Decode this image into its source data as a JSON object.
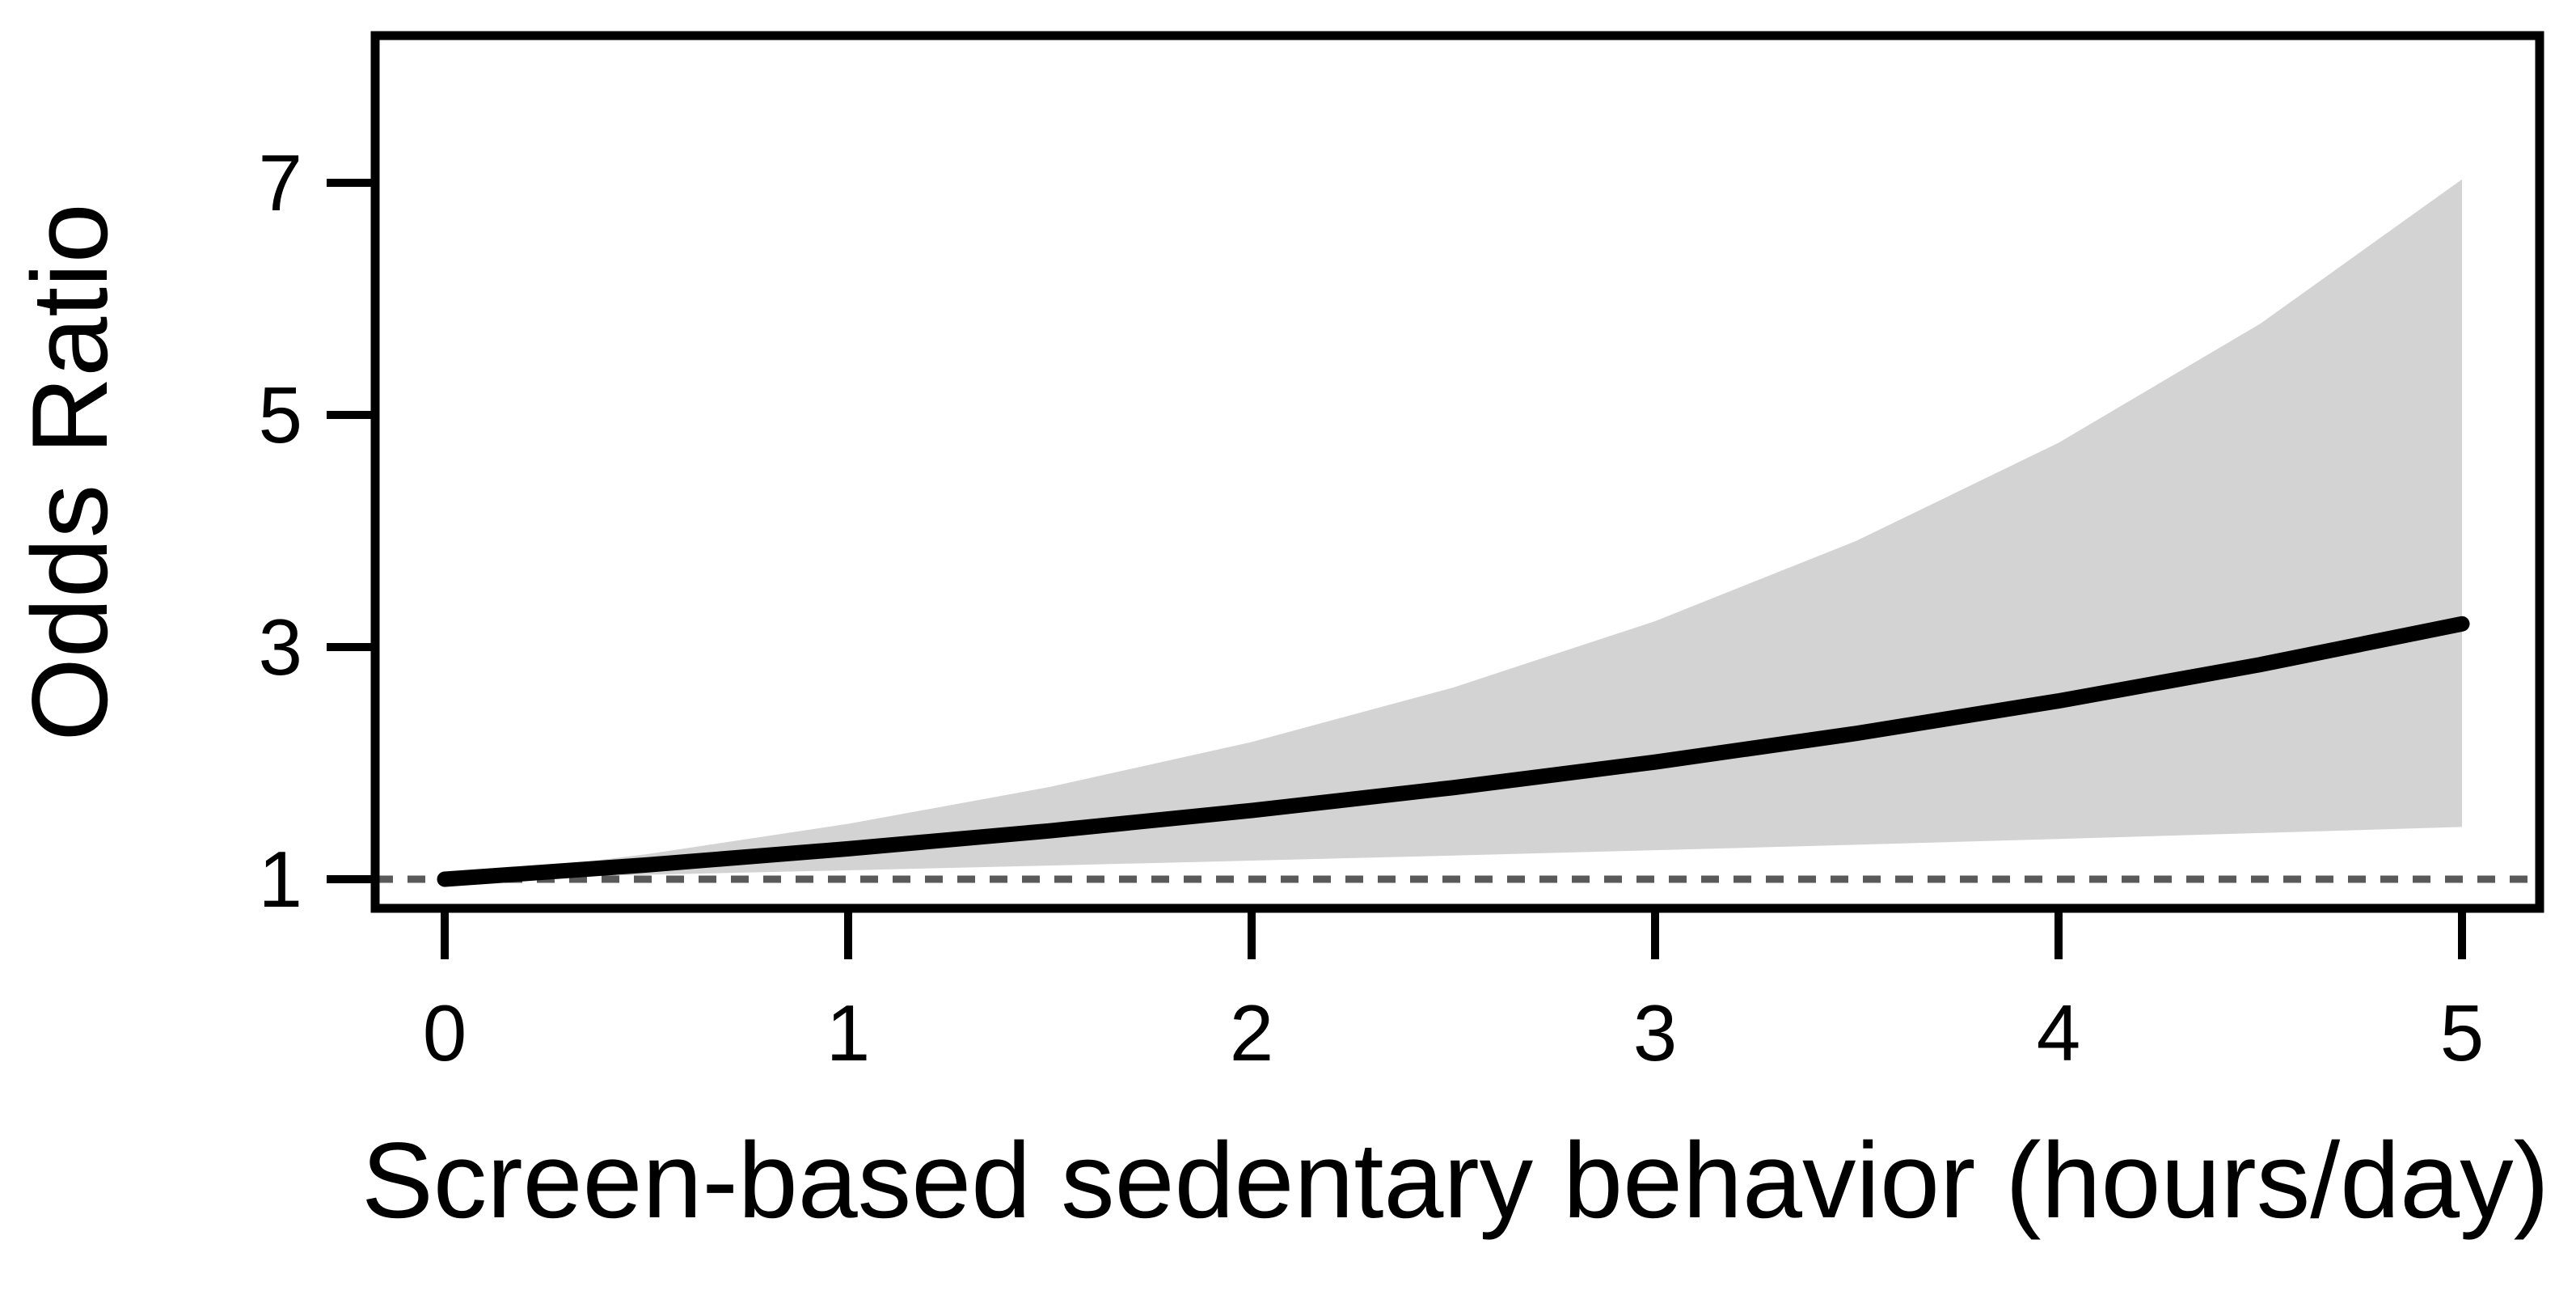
{
  "chart_data": {
    "type": "line",
    "title": "",
    "xlabel": "Screen-based sedentary behavior (hours/day)",
    "ylabel": "Odds Ratio",
    "x_ticks": [
      0,
      1,
      2,
      3,
      4,
      5
    ],
    "y_ticks": [
      1,
      3,
      5,
      7
    ],
    "xlim": [
      -0.17,
      5.19
    ],
    "ylim": [
      0.75,
      8.25
    ],
    "grid": false,
    "legend": null,
    "x": [
      0,
      0.5,
      1,
      1.5,
      2,
      2.5,
      3,
      3.5,
      4,
      4.5,
      5
    ],
    "series": [
      {
        "name": "odds-ratio",
        "values": [
          1.0,
          1.123,
          1.262,
          1.417,
          1.592,
          1.789,
          2.009,
          2.257,
          2.536,
          2.849,
          3.2
        ]
      },
      {
        "name": "ci-upper",
        "values": [
          1.0,
          1.215,
          1.477,
          1.795,
          2.182,
          2.652,
          3.223,
          3.917,
          4.76,
          5.786,
          7.03
        ]
      },
      {
        "name": "ci-lower",
        "values": [
          1.0,
          1.038,
          1.077,
          1.118,
          1.16,
          1.204,
          1.25,
          1.297,
          1.347,
          1.398,
          1.45
        ]
      }
    ],
    "reference_line": {
      "y": 1,
      "style": "dotted"
    },
    "colors": {
      "curve": "#000000",
      "ci_band": "#d3d3d3",
      "reference_line": "#5a5a5a",
      "axis": "#000000",
      "background": "#ffffff"
    }
  }
}
